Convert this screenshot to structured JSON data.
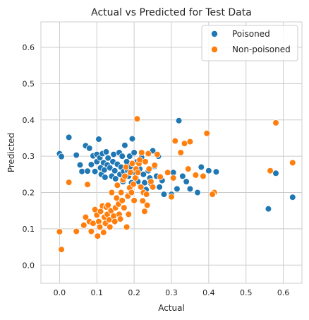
{
  "chart_data": {
    "type": "scatter",
    "title": "Actual vs Predicted for Test Data",
    "xlabel": "Actual",
    "ylabel": "Predicted",
    "xlim": [
      -0.05,
      0.65
    ],
    "ylim": [
      -0.05,
      0.67
    ],
    "xticks": [
      0.0,
      0.1,
      0.2,
      0.3,
      0.4,
      0.5,
      0.6
    ],
    "yticks": [
      0.0,
      0.1,
      0.2,
      0.3,
      0.4,
      0.5,
      0.6
    ],
    "grid": true,
    "legend_position": "top-right",
    "series": [
      {
        "name": "Poisoned",
        "color": "#1f77b4",
        "points": [
          [
            0.0,
            0.307
          ],
          [
            0.005,
            0.299
          ],
          [
            0.025,
            0.352
          ],
          [
            0.045,
            0.303
          ],
          [
            0.055,
            0.276
          ],
          [
            0.06,
            0.258
          ],
          [
            0.07,
            0.329
          ],
          [
            0.075,
            0.259
          ],
          [
            0.08,
            0.322
          ],
          [
            0.085,
            0.277
          ],
          [
            0.09,
            0.301
          ],
          [
            0.095,
            0.258
          ],
          [
            0.1,
            0.305
          ],
          [
            0.1,
            0.285
          ],
          [
            0.105,
            0.347
          ],
          [
            0.108,
            0.296
          ],
          [
            0.11,
            0.268
          ],
          [
            0.112,
            0.25
          ],
          [
            0.115,
            0.307
          ],
          [
            0.118,
            0.282
          ],
          [
            0.12,
            0.262
          ],
          [
            0.122,
            0.242
          ],
          [
            0.125,
            0.312
          ],
          [
            0.128,
            0.276
          ],
          [
            0.13,
            0.295
          ],
          [
            0.135,
            0.268
          ],
          [
            0.14,
            0.245
          ],
          [
            0.143,
            0.285
          ],
          [
            0.145,
            0.305
          ],
          [
            0.148,
            0.26
          ],
          [
            0.15,
            0.238
          ],
          [
            0.155,
            0.278
          ],
          [
            0.16,
            0.31
          ],
          [
            0.162,
            0.25
          ],
          [
            0.165,
            0.27
          ],
          [
            0.168,
            0.3
          ],
          [
            0.17,
            0.23
          ],
          [
            0.172,
            0.258
          ],
          [
            0.175,
            0.33
          ],
          [
            0.18,
            0.285
          ],
          [
            0.182,
            0.262
          ],
          [
            0.185,
            0.245
          ],
          [
            0.188,
            0.3
          ],
          [
            0.19,
            0.272
          ],
          [
            0.193,
            0.227
          ],
          [
            0.195,
            0.348
          ],
          [
            0.198,
            0.256
          ],
          [
            0.2,
            0.31
          ],
          [
            0.205,
            0.24
          ],
          [
            0.208,
            0.285
          ],
          [
            0.21,
            0.23
          ],
          [
            0.215,
            0.265
          ],
          [
            0.218,
            0.215
          ],
          [
            0.22,
            0.297
          ],
          [
            0.225,
            0.25
          ],
          [
            0.228,
            0.227
          ],
          [
            0.232,
            0.208
          ],
          [
            0.238,
            0.26
          ],
          [
            0.242,
            0.24
          ],
          [
            0.245,
            0.225
          ],
          [
            0.25,
            0.315
          ],
          [
            0.255,
            0.272
          ],
          [
            0.26,
            0.245
          ],
          [
            0.265,
            0.3
          ],
          [
            0.268,
            0.215
          ],
          [
            0.275,
            0.233
          ],
          [
            0.28,
            0.195
          ],
          [
            0.3,
            0.195
          ],
          [
            0.305,
            0.255
          ],
          [
            0.315,
            0.21
          ],
          [
            0.32,
            0.398
          ],
          [
            0.33,
            0.245
          ],
          [
            0.34,
            0.23
          ],
          [
            0.35,
            0.21
          ],
          [
            0.37,
            0.2
          ],
          [
            0.38,
            0.27
          ],
          [
            0.4,
            0.26
          ],
          [
            0.42,
            0.257
          ],
          [
            0.56,
            0.155
          ],
          [
            0.58,
            0.253
          ],
          [
            0.625,
            0.187
          ]
        ]
      },
      {
        "name": "Non-poisoned",
        "color": "#ff7f0e",
        "points": [
          [
            0.0,
            0.092
          ],
          [
            0.005,
            0.043
          ],
          [
            0.025,
            0.228
          ],
          [
            0.045,
            0.093
          ],
          [
            0.065,
            0.11
          ],
          [
            0.07,
            0.132
          ],
          [
            0.075,
            0.222
          ],
          [
            0.08,
            0.12
          ],
          [
            0.085,
            0.093
          ],
          [
            0.09,
            0.115
          ],
          [
            0.095,
            0.153
          ],
          [
            0.1,
            0.138
          ],
          [
            0.102,
            0.08
          ],
          [
            0.105,
            0.12
          ],
          [
            0.108,
            0.105
          ],
          [
            0.11,
            0.148
          ],
          [
            0.115,
            0.163
          ],
          [
            0.118,
            0.09
          ],
          [
            0.12,
            0.132
          ],
          [
            0.123,
            0.115
          ],
          [
            0.125,
            0.16
          ],
          [
            0.128,
            0.14
          ],
          [
            0.13,
            0.165
          ],
          [
            0.133,
            0.125
          ],
          [
            0.135,
            0.105
          ],
          [
            0.138,
            0.15
          ],
          [
            0.14,
            0.2
          ],
          [
            0.145,
            0.135
          ],
          [
            0.148,
            0.12
          ],
          [
            0.15,
            0.158
          ],
          [
            0.153,
            0.185
          ],
          [
            0.155,
            0.22
          ],
          [
            0.158,
            0.168
          ],
          [
            0.16,
            0.14
          ],
          [
            0.163,
            0.127
          ],
          [
            0.165,
            0.2
          ],
          [
            0.168,
            0.178
          ],
          [
            0.17,
            0.235
          ],
          [
            0.173,
            0.158
          ],
          [
            0.175,
            0.245
          ],
          [
            0.178,
            0.27
          ],
          [
            0.18,
            0.105
          ],
          [
            0.183,
            0.19
          ],
          [
            0.185,
            0.14
          ],
          [
            0.188,
            0.213
          ],
          [
            0.19,
            0.255
          ],
          [
            0.193,
            0.2
          ],
          [
            0.195,
            0.28
          ],
          [
            0.198,
            0.223
          ],
          [
            0.2,
            0.178
          ],
          [
            0.203,
            0.24
          ],
          [
            0.205,
            0.265
          ],
          [
            0.208,
            0.403
          ],
          [
            0.21,
            0.255
          ],
          [
            0.213,
            0.28
          ],
          [
            0.215,
            0.29
          ],
          [
            0.218,
            0.215
          ],
          [
            0.22,
            0.31
          ],
          [
            0.223,
            0.177
          ],
          [
            0.225,
            0.2
          ],
          [
            0.228,
            0.148
          ],
          [
            0.23,
            0.285
          ],
          [
            0.233,
            0.195
          ],
          [
            0.235,
            0.165
          ],
          [
            0.238,
            0.307
          ],
          [
            0.24,
            0.265
          ],
          [
            0.245,
            0.23
          ],
          [
            0.25,
            0.215
          ],
          [
            0.255,
            0.275
          ],
          [
            0.262,
            0.305
          ],
          [
            0.27,
            0.243
          ],
          [
            0.29,
            0.255
          ],
          [
            0.3,
            0.188
          ],
          [
            0.305,
            0.24
          ],
          [
            0.31,
            0.342
          ],
          [
            0.325,
            0.31
          ],
          [
            0.335,
            0.335
          ],
          [
            0.345,
            0.265
          ],
          [
            0.35,
            0.34
          ],
          [
            0.365,
            0.248
          ],
          [
            0.385,
            0.245
          ],
          [
            0.395,
            0.363
          ],
          [
            0.415,
            0.2
          ],
          [
            0.41,
            0.195
          ],
          [
            0.565,
            0.26
          ],
          [
            0.58,
            0.392
          ],
          [
            0.625,
            0.282
          ]
        ]
      }
    ]
  }
}
